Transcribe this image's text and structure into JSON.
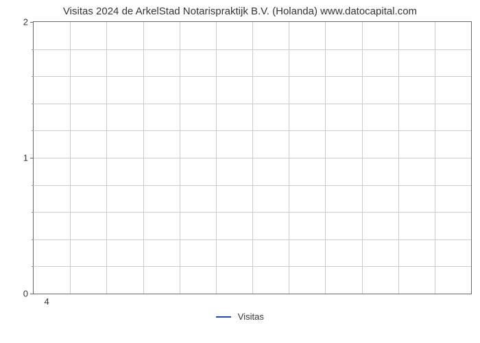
{
  "chart": {
    "type": "line",
    "title": "Visitas 2024 de ArkelStad Notarispraktijk B.V. (Holanda) www.datocapital.com",
    "title_fontsize": 15,
    "title_color": "#333333",
    "background_color": "#ffffff",
    "plot_border_color": "#666666",
    "grid_color": "#cccccc",
    "ylim": [
      0,
      2
    ],
    "y_major_ticks": [
      0,
      1,
      2
    ],
    "y_minor_count_between": 4,
    "x_tick_labels": [
      "4"
    ],
    "x_tick_positions_pct": [
      3
    ],
    "vgrid_count": 12,
    "hgrid_count": 10,
    "tick_label_fontsize": 13,
    "tick_label_color": "#333333",
    "series": [
      {
        "name": "Visitas",
        "color": "#2244cc",
        "line_width": 2.5,
        "data": []
      }
    ],
    "legend": {
      "position": "bottom-center",
      "fontsize": 13,
      "label": "Visitas",
      "swatch_color": "#2244cc"
    }
  }
}
